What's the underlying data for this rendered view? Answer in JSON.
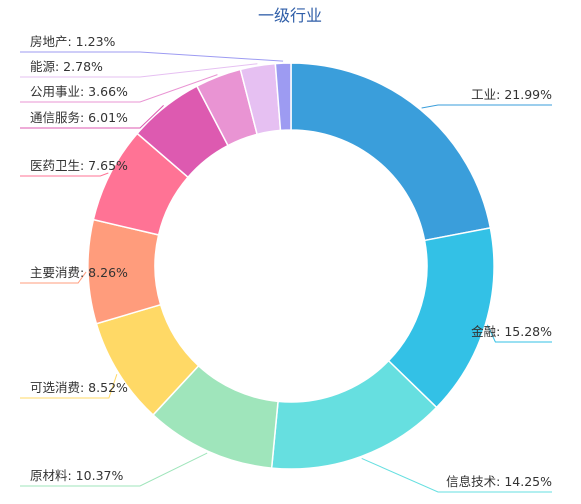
{
  "chart_data": {
    "type": "pie",
    "variant": "donut",
    "title": "一级行业",
    "labels": [
      "工业",
      "金融",
      "信息技术",
      "原材料",
      "可选消费",
      "主要消费",
      "医药卫生",
      "通信服务",
      "公用事业",
      "能源",
      "房地产"
    ],
    "values": [
      21.99,
      15.28,
      14.25,
      10.37,
      8.52,
      8.26,
      7.65,
      6.01,
      3.66,
      2.78,
      1.23
    ],
    "unit": "%",
    "label_texts": [
      "工业: 21.99%",
      "金融: 15.28%",
      "信息技术: 14.25%",
      "原材料: 10.37%",
      "可选消费: 8.52%",
      "主要消费: 8.26%",
      "医药卫生: 7.65%",
      "通信服务: 6.01%",
      "公用事业: 3.66%",
      "能源: 2.78%",
      "房地产: 1.23%"
    ],
    "colors": [
      "#3a9edb",
      "#33c1e6",
      "#66dfe0",
      "#9fe5bb",
      "#ffd966",
      "#ff9c7c",
      "#ff7395",
      "#dd5ab0",
      "#e994d3",
      "#e6c0f2",
      "#9d9bf2"
    ],
    "legend": "none"
  }
}
